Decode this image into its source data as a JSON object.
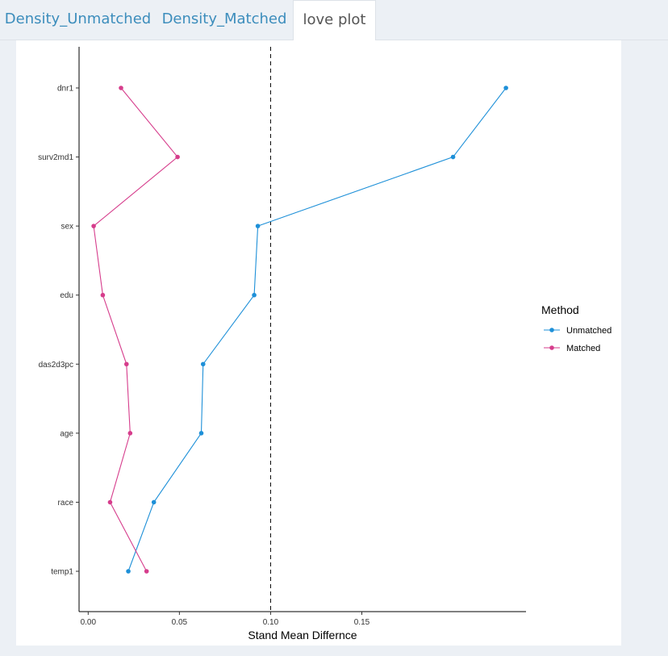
{
  "tabs": [
    {
      "label": "Density_Unmatched",
      "active": false
    },
    {
      "label": "Density_Matched",
      "active": false
    },
    {
      "label": "love plot",
      "active": true
    }
  ],
  "chart_data": {
    "type": "line",
    "xlabel": "Stand Mean Differnce",
    "ylabel": "",
    "categories": [
      "temp1",
      "race",
      "age",
      "das2d3pc",
      "edu",
      "sex",
      "surv2md1",
      "dnr1"
    ],
    "xlim": [
      -0.005,
      0.24
    ],
    "x_ticks": [
      0.0,
      0.05,
      0.1,
      0.15
    ],
    "x_tick_labels": [
      "0.00",
      "0.05",
      "0.10",
      "0.15"
    ],
    "reference_line": {
      "x": 0.1,
      "style": "dashed"
    },
    "grid": false,
    "legend": {
      "title": "Method",
      "position": "right"
    },
    "series": [
      {
        "name": "Unmatched",
        "color": "#1e90d8",
        "values": [
          0.022,
          0.036,
          0.062,
          0.063,
          0.091,
          0.093,
          0.2,
          0.229
        ]
      },
      {
        "name": "Matched",
        "color": "#d63d8c",
        "values": [
          0.032,
          0.012,
          0.023,
          0.021,
          0.008,
          0.003,
          0.049,
          0.018
        ]
      }
    ]
  }
}
